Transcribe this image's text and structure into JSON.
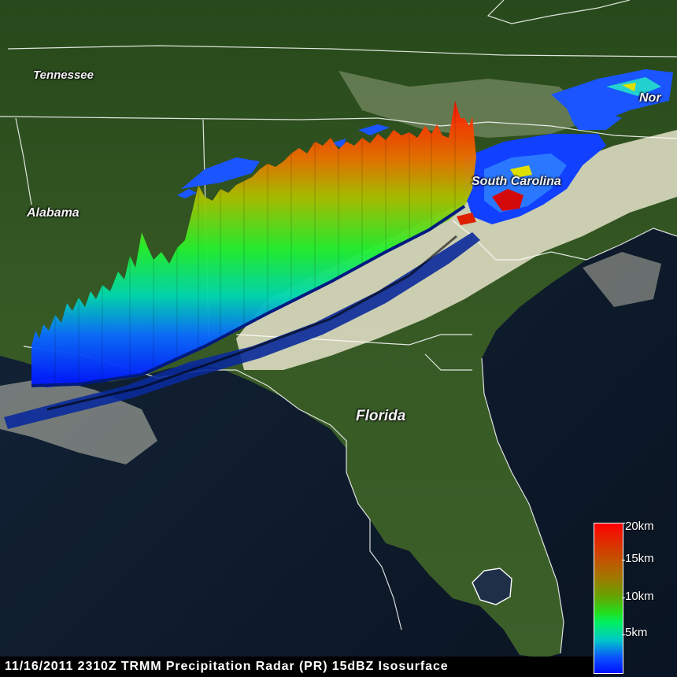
{
  "labels": {
    "tennessee": "Tennessee",
    "alabama": "Alabama",
    "south_carolina": "South Carolina",
    "florida": "Florida",
    "north_carolina_partial": "Nor"
  },
  "caption": "11/16/2011 2310Z TRMM Precipitation Radar (PR) 15dBZ Isosurface",
  "legend": {
    "ticks": [
      "20km",
      "15km",
      "10km",
      "5km"
    ],
    "colors": [
      "#ff0000",
      "#c45200",
      "#22e020",
      "#0010ff"
    ]
  },
  "colors": {
    "ocean": "#0b1626",
    "land": "#2f5a22",
    "cloud": "#e6e2c8",
    "border": "#ffffff"
  }
}
